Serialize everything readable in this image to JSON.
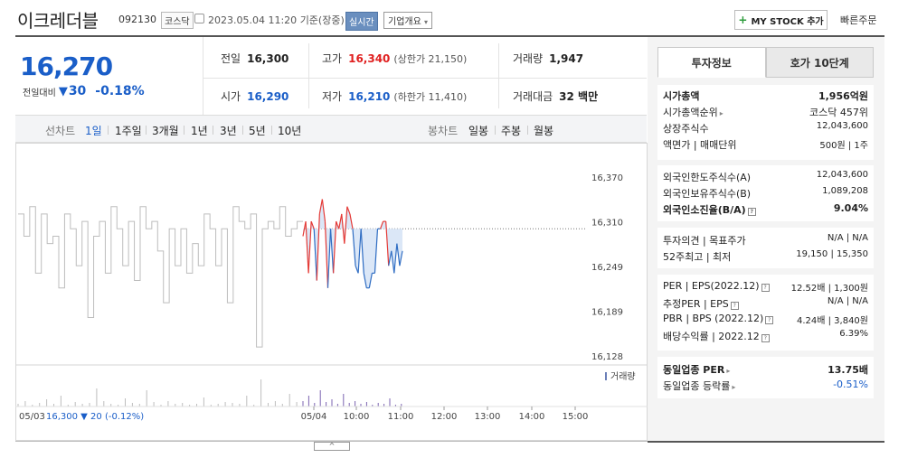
{
  "header": {
    "name": "이크레더블",
    "code": "092130",
    "market": "코스닥",
    "datetime": "2023.05.04 11:20",
    "basis": "기준(장중)",
    "live": "실시간",
    "company_info": "기업개요",
    "my_stock": "MY STOCK 추가",
    "quick_order": "빠른주문"
  },
  "summary": {
    "price": "16,270",
    "change_label": "전일대비",
    "change_arrow": "▼",
    "change": "30",
    "change_pct": "-0.18%",
    "prev_label": "전일",
    "prev": "16,300",
    "open_label": "시가",
    "open": "16,290",
    "high_label": "고가",
    "high": "16,340",
    "upper_limit": "(상한가 21,150)",
    "low_label": "저가",
    "low": "16,210",
    "lower_limit": "(하한가 11,410)",
    "volume_label": "거래량",
    "volume": "1,947",
    "amount_label": "거래대금",
    "amount": "32 백만"
  },
  "periods": {
    "line_label": "선차트",
    "line_items": [
      "1일",
      "1주일",
      "3개월",
      "1년",
      "3년",
      "5년",
      "10년"
    ],
    "candle_label": "봉차트",
    "candle_items": [
      "일봉",
      "주봉",
      "월봉"
    ]
  },
  "chart_data": {
    "type": "line",
    "y_ticks": [
      "16,370",
      "16,310",
      "16,249",
      "16,189",
      "16,128"
    ],
    "ylim": [
      16128,
      16370
    ],
    "prev_close": 16300,
    "x_ticks": [
      "05/03",
      "05/04",
      "10:00",
      "11:00",
      "12:00",
      "13:00",
      "14:00",
      "15:00"
    ],
    "prev_day_summary": "05/03 16,300 ▼ 20 (-0.12%)",
    "volume_legend": "거래량",
    "prev_day_series": [
      16320,
      16290,
      16330,
      16240,
      16320,
      16280,
      16290,
      16220,
      16320,
      16300,
      16250,
      16310,
      16180,
      16290,
      16310,
      16240,
      16330,
      16300,
      16250,
      16310,
      16230,
      16330,
      16300,
      16310,
      16270,
      16200,
      16300,
      16250,
      16300,
      16240,
      16280,
      16250,
      16320,
      16300,
      16250,
      16300,
      16200,
      16330,
      16310,
      16300,
      16320,
      16140,
      16300,
      16310,
      16300,
      16330,
      16290,
      16300,
      16310,
      16310
    ],
    "today_series": [
      16290,
      16310,
      16240,
      16310,
      16300,
      16230,
      16320,
      16340,
      16310,
      16220,
      16300,
      16240,
      16310,
      16300,
      16320,
      16280,
      16330,
      16320,
      16300,
      16250,
      16240,
      16300,
      16240,
      16220,
      16220,
      16240,
      16240,
      16300,
      16300,
      16310,
      16310,
      16250,
      16270,
      16240,
      16280,
      16250,
      16270
    ]
  },
  "tabs": {
    "invest": "투자정보",
    "hoga": "호가 10단계"
  },
  "info1": {
    "mktcap_k": "시가총액",
    "mktcap_v": "1,956억원",
    "rank_k": "시가총액순위",
    "rank_v": "코스닥 457위",
    "shares_k": "상장주식수",
    "shares_v": "12,043,600",
    "face_k": "액면가 | 매매단위",
    "face_v": "500원 | 1주"
  },
  "info2": {
    "flimit_k": "외국인한도주식수(A)",
    "flimit_v": "12,043,600",
    "fhold_k": "외국인보유주식수(B)",
    "fhold_v": "1,089,208",
    "frate_k": "외국인소진율(B/A)",
    "frate_v": "9.04%"
  },
  "info3": {
    "opinion_k": "투자의견 | 목표주가",
    "opinion_v": "N/A | N/A",
    "w52_k": "52주최고 | 최저",
    "w52_v": "19,150 | 15,350"
  },
  "info4": {
    "per_k": "PER | EPS(2022.12)",
    "per_v": "12.52배 | 1,300원",
    "eper_k": "추정PER | EPS",
    "eper_v": "N/A | N/A",
    "pbr_k": "PBR | BPS (2022.12)",
    "pbr_v": "4.24배 | 3,840원",
    "div_k": "배당수익률 | 2022.12",
    "div_v": "6.39%"
  },
  "info5": {
    "sper_k": "동일업종 PER",
    "sper_v": "13.75배",
    "srate_k": "동일업종 등락률",
    "srate_v": "-0.51%"
  }
}
